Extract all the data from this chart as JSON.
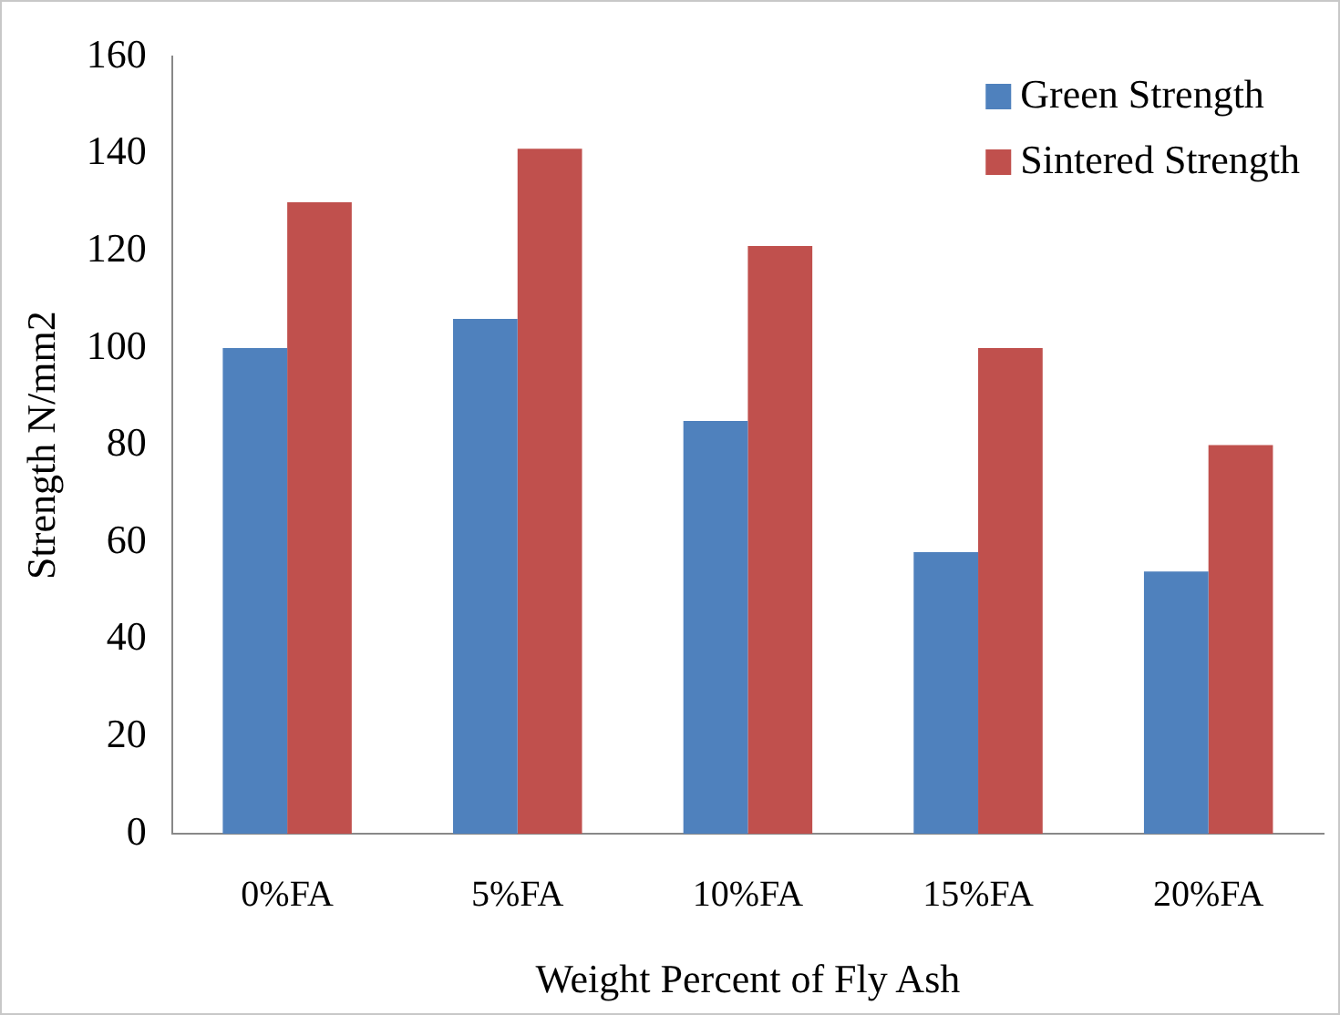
{
  "chart_data": {
    "type": "bar",
    "xlabel": "Weight Percent of Fly Ash",
    "ylabel": "Strength N/mm2",
    "categories": [
      "0%FA",
      "5%FA",
      "10%FA",
      "15%FA",
      "20%FA"
    ],
    "series": [
      {
        "name": "Green Strength",
        "color": "#4f81bd",
        "values": [
          100,
          106,
          85,
          58,
          54
        ]
      },
      {
        "name": "Sintered Strength",
        "color": "#c0504d",
        "values": [
          130,
          141,
          121,
          100,
          80
        ]
      }
    ],
    "ylim": [
      0,
      160
    ],
    "yticks": [
      0,
      20,
      40,
      60,
      80,
      100,
      120,
      140,
      160
    ],
    "grid": false,
    "legend": "top right"
  }
}
